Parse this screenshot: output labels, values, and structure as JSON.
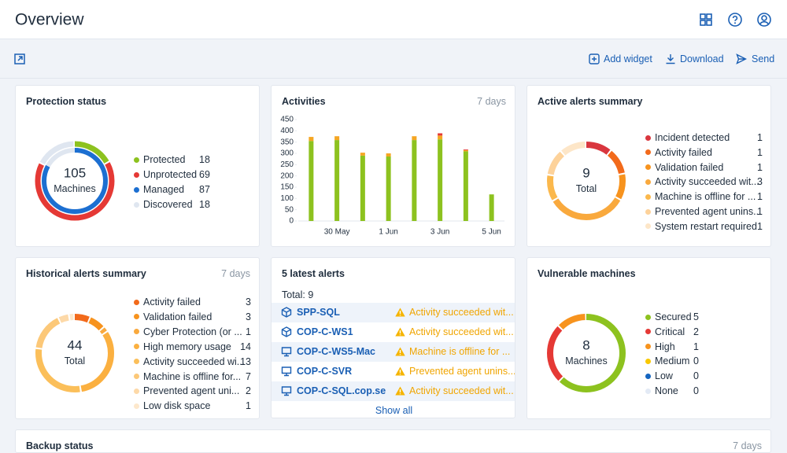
{
  "header": {
    "title": "Overview"
  },
  "toolbar": {
    "add_widget": "Add widget",
    "download": "Download",
    "send": "Send"
  },
  "widgets": {
    "protection_status": {
      "title": "Protection status",
      "center_value": 105,
      "center_label": "Machines",
      "items": [
        {
          "label": "Protected",
          "value": 18,
          "color": "#8dc21f"
        },
        {
          "label": "Unprotected",
          "value": 69,
          "color": "#e53935"
        },
        {
          "label": "Managed",
          "value": 87,
          "color": "#1c6fd1"
        },
        {
          "label": "Discovered",
          "value": 18,
          "color": "#dfe6f0"
        }
      ]
    },
    "activities": {
      "title": "Activities",
      "period": "7 days",
      "chart": {
        "type": "bar",
        "stacked": true,
        "categories": [
          null,
          "30 May",
          null,
          "1 Jun",
          null,
          "3 Jun",
          null,
          "5 Jun"
        ],
        "series": [
          {
            "color": "#8dc21f",
            "values": [
              355,
              359,
              290,
              286,
              359,
              362,
              309,
              118
            ]
          },
          {
            "color": "#f5a623",
            "values": [
              18,
              17,
              13,
              14,
              17,
              17,
              5,
              0
            ]
          },
          {
            "color": "#e53935",
            "values": [
              0,
              0,
              0,
              0,
              0,
              10,
              3,
              0
            ]
          }
        ],
        "ylim": [
          0,
          450
        ],
        "yticks": [
          0,
          50,
          100,
          150,
          200,
          250,
          300,
          350,
          400,
          450
        ]
      }
    },
    "active_alerts": {
      "title": "Active alerts summary",
      "center_value": 9,
      "center_label": "Total",
      "items": [
        {
          "label": "Incident detected",
          "value": 1,
          "color": "#d9363e"
        },
        {
          "label": "Activity failed",
          "value": 1,
          "color": "#f26a1b"
        },
        {
          "label": "Validation failed",
          "value": 1,
          "color": "#f7931e"
        },
        {
          "label": "Activity succeeded wit...",
          "value": 3,
          "color": "#f9a93d"
        },
        {
          "label": "Machine is offline for ...",
          "value": 1,
          "color": "#fbb84c"
        },
        {
          "label": "Prevented agent unins...",
          "value": 1,
          "color": "#fdd29a"
        },
        {
          "label": "System restart required",
          "value": 1,
          "color": "#fde6c8"
        }
      ]
    },
    "historical_alerts": {
      "title": "Historical alerts summary",
      "period": "7 days",
      "center_value": 44,
      "center_label": "Total",
      "items": [
        {
          "label": "Activity failed",
          "value": 3,
          "color": "#f26a1b"
        },
        {
          "label": "Validation failed",
          "value": 3,
          "color": "#f7931e"
        },
        {
          "label": "Cyber Protection (or ...",
          "value": 1,
          "color": "#f9a93d"
        },
        {
          "label": "High memory usage",
          "value": 14,
          "color": "#fbb040"
        },
        {
          "label": "Activity succeeded wi...",
          "value": 13,
          "color": "#fbbf5a"
        },
        {
          "label": "Machine is offline for...",
          "value": 7,
          "color": "#fcc878"
        },
        {
          "label": "Prevented agent uni...",
          "value": 2,
          "color": "#fdd9a8"
        },
        {
          "label": "Low disk space",
          "value": 1,
          "color": "#fde8cc"
        }
      ]
    },
    "latest_alerts": {
      "title": "5 latest alerts",
      "total": "Total: 9",
      "rows": [
        {
          "machine": "SPP-SQL",
          "alert": "Activity succeeded wit..."
        },
        {
          "machine": "COP-C-WS1",
          "alert": "Activity succeeded wit..."
        },
        {
          "machine": "COP-C-WS5-Mac",
          "alert": "Machine is offline for ..."
        },
        {
          "machine": "COP-C-SVR",
          "alert": "Prevented agent unins..."
        },
        {
          "machine": "COP-C-SQL.cop.se",
          "alert": "Activity succeeded wit..."
        }
      ],
      "show_all": "Show all"
    },
    "vulnerable_machines": {
      "title": "Vulnerable machines",
      "center_value": 8,
      "center_label": "Machines",
      "items": [
        {
          "label": "Secured",
          "value": 5,
          "color": "#8dc21f"
        },
        {
          "label": "Critical",
          "value": 2,
          "color": "#e53935"
        },
        {
          "label": "High",
          "value": 1,
          "color": "#f7931e"
        },
        {
          "label": "Medium",
          "value": 0,
          "color": "#f9c800"
        },
        {
          "label": "Low",
          "value": 0,
          "color": "#1565c0"
        },
        {
          "label": "None",
          "value": 0,
          "color": "#e3eaf5"
        }
      ]
    },
    "backup_status": {
      "title": "Backup status",
      "period": "7 days"
    }
  }
}
